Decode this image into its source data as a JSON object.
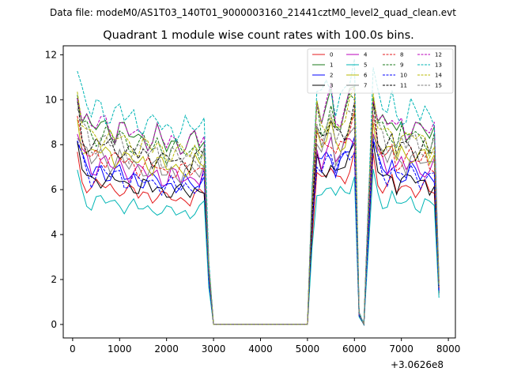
{
  "figure": {
    "suptitle": "Data file: modeM0/AS1T03_140T01_9000003160_21441cztM0_level2_quad_clean.evt"
  },
  "chart_data": {
    "type": "line",
    "title": "Quadrant 1 module wise count rates with 100.0s bins.",
    "xlabel": "",
    "ylabel": "",
    "x_offset_label": "+3.0626e8",
    "xlim": [
      -200,
      8150
    ],
    "ylim": [
      -0.6,
      12.4
    ],
    "xticks": [
      0,
      1000,
      2000,
      3000,
      4000,
      5000,
      6000,
      7000,
      8000
    ],
    "yticks": [
      0,
      2,
      4,
      6,
      8,
      10,
      12
    ],
    "grid": false,
    "legend": {
      "placement": "top-right",
      "columns": 4
    },
    "x": [
      100,
      200,
      300,
      400,
      500,
      600,
      700,
      800,
      900,
      1000,
      1100,
      1200,
      1300,
      1400,
      1500,
      1600,
      1700,
      1800,
      1900,
      2000,
      2100,
      2200,
      2300,
      2400,
      2500,
      2600,
      2700,
      2800,
      2900,
      3000,
      3100,
      3200,
      3300,
      3400,
      3500,
      3600,
      3700,
      3800,
      3900,
      4000,
      4100,
      4200,
      4300,
      4400,
      4500,
      4600,
      4700,
      4800,
      4900,
      5000,
      5100,
      5200,
      5300,
      5400,
      5500,
      5600,
      5700,
      5800,
      5900,
      6000,
      6100,
      6200,
      6300,
      6400,
      6500,
      6600,
      6700,
      6800,
      6900,
      7000,
      7100,
      7200,
      7300,
      7400,
      7500,
      7600,
      7700,
      7800
    ],
    "base_shape": [
      1.0,
      0.89,
      0.85,
      0.81,
      0.83,
      0.84,
      0.83,
      0.82,
      0.81,
      0.83,
      0.8,
      0.79,
      0.8,
      0.78,
      0.79,
      0.78,
      0.77,
      0.79,
      0.76,
      0.75,
      0.77,
      0.76,
      0.75,
      0.76,
      0.75,
      0.77,
      0.76,
      0.79,
      0.25,
      0,
      0,
      0,
      0,
      0,
      0,
      0,
      0,
      0,
      0,
      0,
      0,
      0,
      0,
      0,
      0,
      0,
      0,
      0,
      0,
      0,
      0.55,
      0.92,
      0.86,
      0.9,
      0.94,
      0.85,
      0.88,
      0.91,
      0.95,
      1.0,
      0.05,
      0,
      0.52,
      1.0,
      0.88,
      0.84,
      0.82,
      0.86,
      0.8,
      0.83,
      0.81,
      0.84,
      0.82,
      0.8,
      0.82,
      0.79,
      0.81,
      0.18
    ],
    "series": [
      {
        "name": "0",
        "color": "#e41a1c",
        "dash": "solid",
        "level": 7.4
      },
      {
        "name": "1",
        "color": "#1a7a1a",
        "dash": "solid",
        "level": 10.6
      },
      {
        "name": "2",
        "color": "#0000ff",
        "dash": "solid",
        "level": 8.2
      },
      {
        "name": "3",
        "color": "#000000",
        "dash": "solid",
        "level": 7.8
      },
      {
        "name": "4",
        "color": "#bb00bb",
        "dash": "solid",
        "level": 8.6
      },
      {
        "name": "5",
        "color": "#00b5b5",
        "dash": "solid",
        "level": 6.6
      },
      {
        "name": "6",
        "color": "#b8b800",
        "dash": "solid",
        "level": 9.2
      },
      {
        "name": "7",
        "color": "#808080",
        "dash": "solid",
        "level": 8.9
      },
      {
        "name": "8",
        "color": "#e41a1c",
        "dash": "dashed",
        "level": 9.0
      },
      {
        "name": "9",
        "color": "#1a7a1a",
        "dash": "dashed",
        "level": 10.2
      },
      {
        "name": "10",
        "color": "#0000ff",
        "dash": "dashed",
        "level": 8.1
      },
      {
        "name": "11",
        "color": "#000000",
        "dash": "dashed",
        "level": 9.6
      },
      {
        "name": "12",
        "color": "#bb00bb",
        "dash": "dashed",
        "level": 10.7
      },
      {
        "name": "13",
        "color": "#00b5b5",
        "dash": "dashed",
        "level": 11.5
      },
      {
        "name": "14",
        "color": "#b8b800",
        "dash": "dashed",
        "level": 10.1
      },
      {
        "name": "15",
        "color": "#808080",
        "dash": "dashed",
        "level": 9.8
      }
    ]
  }
}
